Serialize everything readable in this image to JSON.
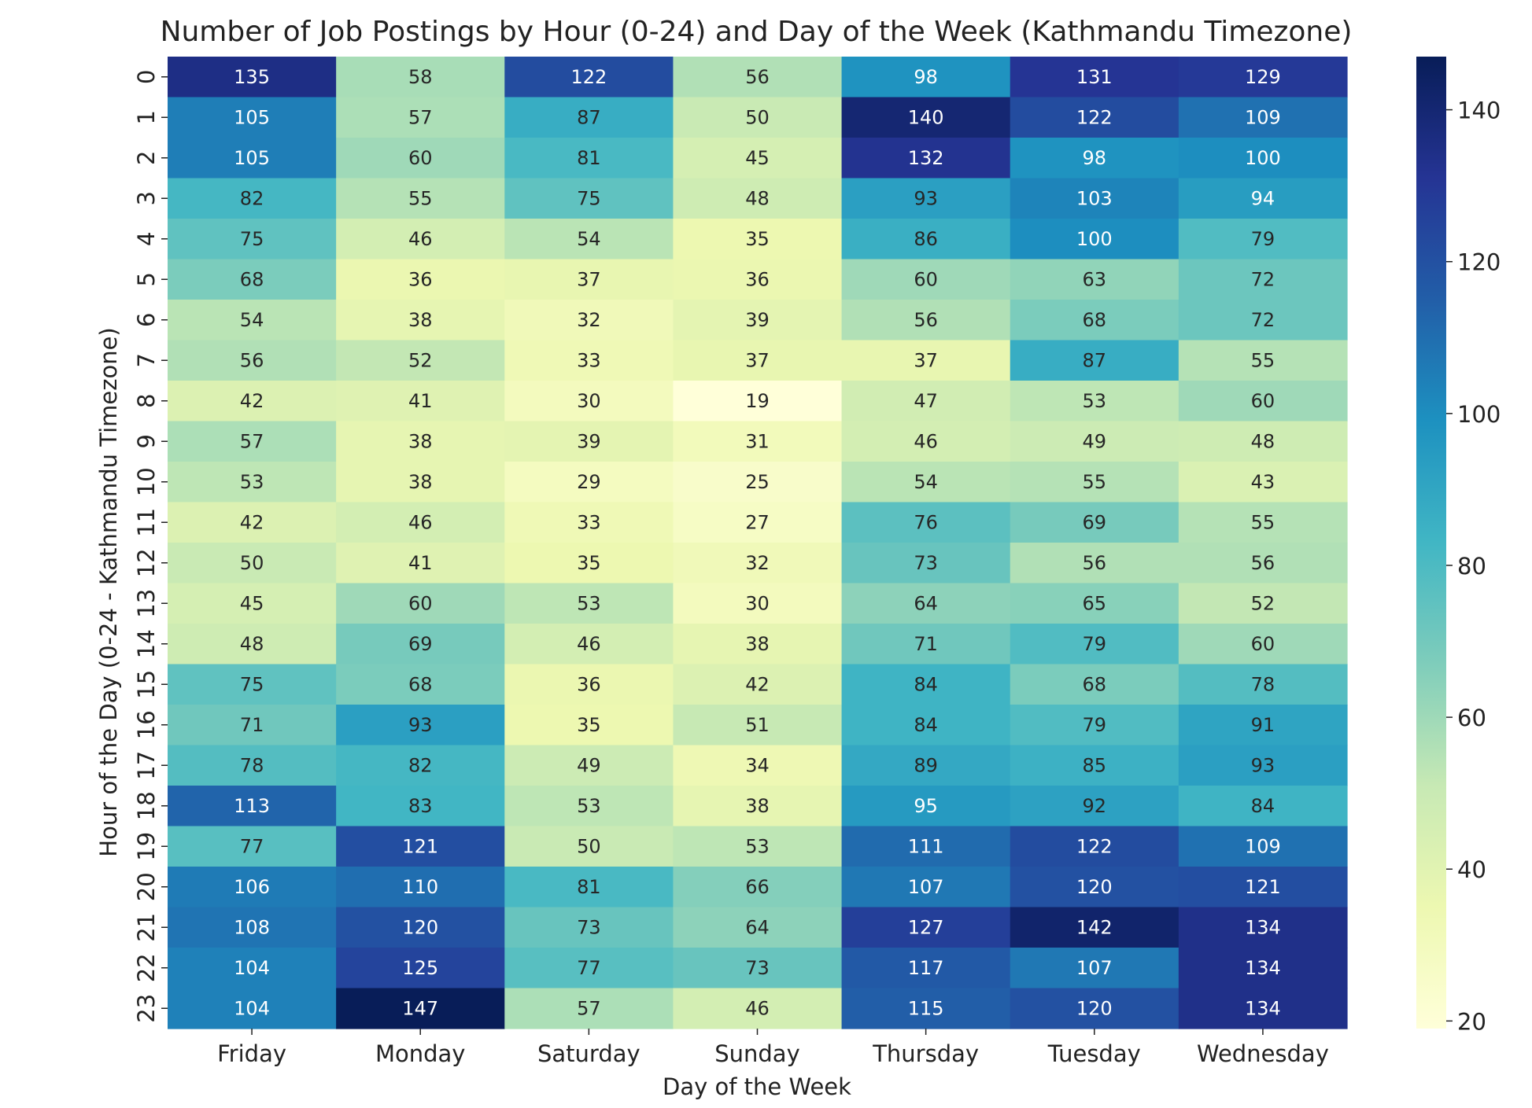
{
  "chart_data": {
    "type": "heatmap",
    "title": "Number of Job Postings by Hour (0-24) and Day of the Week (Kathmandu Timezone)",
    "xlabel": "Day of the Week",
    "ylabel": "Hour of the Day (0-24 - Kathmandu Timezone)",
    "x_categories": [
      "Friday",
      "Monday",
      "Saturday",
      "Sunday",
      "Thursday",
      "Tuesday",
      "Wednesday"
    ],
    "y_categories": [
      "0",
      "1",
      "2",
      "3",
      "4",
      "5",
      "6",
      "7",
      "8",
      "9",
      "10",
      "11",
      "12",
      "13",
      "14",
      "15",
      "16",
      "17",
      "18",
      "19",
      "20",
      "21",
      "22",
      "23"
    ],
    "values": [
      [
        135,
        58,
        122,
        56,
        98,
        131,
        129
      ],
      [
        105,
        57,
        87,
        50,
        140,
        122,
        109
      ],
      [
        105,
        60,
        81,
        45,
        132,
        98,
        100
      ],
      [
        82,
        55,
        75,
        48,
        93,
        103,
        94
      ],
      [
        75,
        46,
        54,
        35,
        86,
        100,
        79
      ],
      [
        68,
        36,
        37,
        36,
        60,
        63,
        72
      ],
      [
        54,
        38,
        32,
        39,
        56,
        68,
        72
      ],
      [
        56,
        52,
        33,
        37,
        37,
        87,
        55
      ],
      [
        42,
        41,
        30,
        19,
        47,
        53,
        60
      ],
      [
        57,
        38,
        39,
        31,
        46,
        49,
        48
      ],
      [
        53,
        38,
        29,
        25,
        54,
        55,
        43
      ],
      [
        42,
        46,
        33,
        27,
        76,
        69,
        55
      ],
      [
        50,
        41,
        35,
        32,
        73,
        56,
        56
      ],
      [
        45,
        60,
        53,
        30,
        64,
        65,
        52
      ],
      [
        48,
        69,
        46,
        38,
        71,
        79,
        60
      ],
      [
        75,
        68,
        36,
        42,
        84,
        68,
        78
      ],
      [
        71,
        93,
        35,
        51,
        84,
        79,
        91
      ],
      [
        78,
        82,
        49,
        34,
        89,
        85,
        93
      ],
      [
        113,
        83,
        53,
        38,
        95,
        92,
        84
      ],
      [
        77,
        121,
        50,
        53,
        111,
        122,
        109
      ],
      [
        106,
        110,
        81,
        66,
        107,
        120,
        121
      ],
      [
        108,
        120,
        73,
        64,
        127,
        142,
        134
      ],
      [
        104,
        125,
        77,
        73,
        117,
        107,
        134
      ],
      [
        104,
        147,
        57,
        46,
        115,
        120,
        134
      ]
    ],
    "colormap": "YlGnBu",
    "vmin": 19,
    "vmax": 147,
    "colorbar_ticks": [
      20,
      40,
      60,
      80,
      100,
      120,
      140
    ],
    "colormap_stops": [
      "#ffffd9",
      "#edf8b1",
      "#c7e9b4",
      "#7fcdbb",
      "#41b6c4",
      "#1d91c0",
      "#225ea8",
      "#253494",
      "#081d58"
    ]
  }
}
